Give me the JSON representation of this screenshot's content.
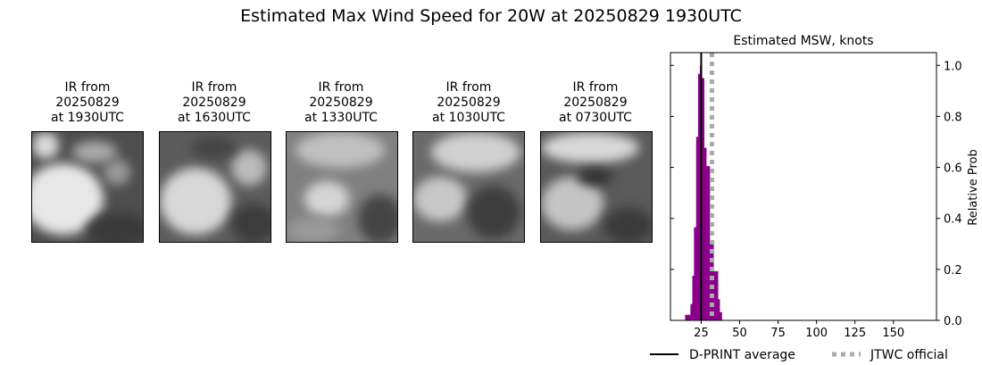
{
  "suptitle": "Estimated Max Wind Speed for 20W at 20250829 1930UTC",
  "panels": [
    {
      "line1": "IR from",
      "line2": "20250829",
      "line3": "at 1930UTC"
    },
    {
      "line1": "IR from",
      "line2": "20250829",
      "line3": "at 1630UTC"
    },
    {
      "line1": "IR from",
      "line2": "20250829",
      "line3": "at 1330UTC"
    },
    {
      "line1": "IR from",
      "line2": "20250829",
      "line3": "at 1030UTC"
    },
    {
      "line1": "IR from",
      "line2": "20250829",
      "line3": "at 0730UTC"
    }
  ],
  "chart_data": {
    "type": "bar",
    "title": "Estimated MSW, knots",
    "ylabel": "Relative Prob",
    "xlabel": "",
    "xlim": [
      5,
      178
    ],
    "ylim": [
      0,
      1.05
    ],
    "xticks": [
      25,
      50,
      75,
      100,
      125,
      150
    ],
    "yticks": [
      0.0,
      0.2,
      0.4,
      0.6,
      0.8,
      1.0
    ],
    "ytick_labels": [
      "0.0",
      "0.2",
      "0.4",
      "0.6",
      "0.8",
      "1.0"
    ],
    "bins": [
      {
        "from": 14.5,
        "to": 18,
        "value": 0.022
      },
      {
        "from": 18,
        "to": 19.2,
        "value": 0.064
      },
      {
        "from": 19.2,
        "to": 20.3,
        "value": 0.175
      },
      {
        "from": 20.3,
        "to": 21.7,
        "value": 0.365
      },
      {
        "from": 21.7,
        "to": 23,
        "value": 0.72
      },
      {
        "from": 23,
        "to": 24.2,
        "value": 0.967
      },
      {
        "from": 24.2,
        "to": 25.4,
        "value": 1.0
      },
      {
        "from": 25.4,
        "to": 26.9,
        "value": 0.95
      },
      {
        "from": 26.9,
        "to": 28.3,
        "value": 0.677
      },
      {
        "from": 28.3,
        "to": 30.6,
        "value": 0.605
      },
      {
        "from": 30.6,
        "to": 33,
        "value": 0.305
      },
      {
        "from": 33,
        "to": 35.9,
        "value": 0.193
      },
      {
        "from": 35.9,
        "to": 37,
        "value": 0.083
      },
      {
        "from": 37,
        "to": 38.4,
        "value": 0.032
      }
    ],
    "bar_color": "#8b008b",
    "dprint_average": 25,
    "jtwc_official": 32,
    "legend": {
      "placement": "bottom",
      "dprint_label": "D-PRINT average",
      "jtwc_label": "JTWC official",
      "dprint_color": "#000000",
      "jtwc_color": "#aaaaaa"
    }
  }
}
